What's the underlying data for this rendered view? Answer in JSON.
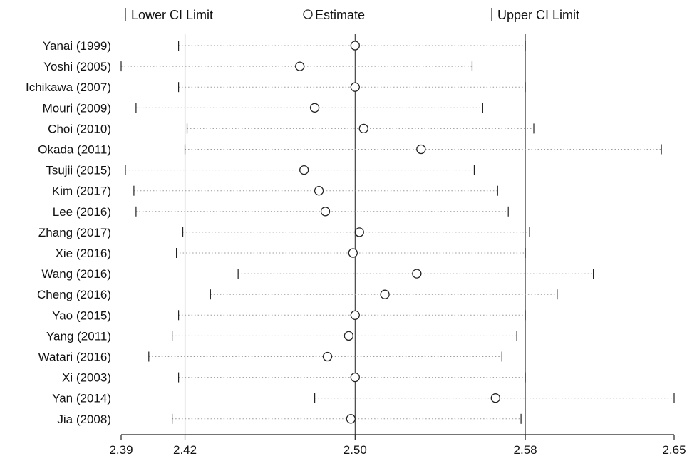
{
  "chart_data": {
    "type": "forest",
    "legend": {
      "lower": "Lower CI Limit",
      "estimate": "Estimate",
      "upper": "Upper CI Limit"
    },
    "xlim": [
      2.39,
      2.65
    ],
    "ticks": [
      {
        "value": 2.39,
        "label": "2.39"
      },
      {
        "value": 2.42,
        "label": "2.42"
      },
      {
        "value": 2.5,
        "label": "2.50"
      },
      {
        "value": 2.58,
        "label": "2.58"
      },
      {
        "value": 2.65,
        "label": "2.65"
      }
    ],
    "reference_lines": [
      2.42,
      2.5,
      2.58
    ],
    "studies": [
      {
        "label": "Yanai (1999)",
        "lower": 2.417,
        "estimate": 2.5,
        "upper": 2.58
      },
      {
        "label": "Yoshi (2005)",
        "lower": 2.39,
        "estimate": 2.474,
        "upper": 2.555
      },
      {
        "label": "Ichikawa (2007)",
        "lower": 2.417,
        "estimate": 2.5,
        "upper": 2.58
      },
      {
        "label": "Mouri (2009)",
        "lower": 2.397,
        "estimate": 2.481,
        "upper": 2.56
      },
      {
        "label": "Choi (2010)",
        "lower": 2.421,
        "estimate": 2.504,
        "upper": 2.584
      },
      {
        "label": "Okada (2011)",
        "lower": 2.42,
        "estimate": 2.531,
        "upper": 2.644
      },
      {
        "label": "Tsujii (2015)",
        "lower": 2.392,
        "estimate": 2.476,
        "upper": 2.556
      },
      {
        "label": "Kim (2017)",
        "lower": 2.396,
        "estimate": 2.483,
        "upper": 2.567
      },
      {
        "label": "Lee (2016)",
        "lower": 2.397,
        "estimate": 2.486,
        "upper": 2.572
      },
      {
        "label": "Zhang (2017)",
        "lower": 2.419,
        "estimate": 2.502,
        "upper": 2.582
      },
      {
        "label": "Xie (2016)",
        "lower": 2.416,
        "estimate": 2.499,
        "upper": 2.58
      },
      {
        "label": "Wang (2016)",
        "lower": 2.445,
        "estimate": 2.529,
        "upper": 2.612
      },
      {
        "label": "Cheng (2016)",
        "lower": 2.432,
        "estimate": 2.514,
        "upper": 2.595
      },
      {
        "label": "Yao (2015)",
        "lower": 2.417,
        "estimate": 2.5,
        "upper": 2.58
      },
      {
        "label": "Yang (2011)",
        "lower": 2.414,
        "estimate": 2.497,
        "upper": 2.576
      },
      {
        "label": "Watari (2016)",
        "lower": 2.403,
        "estimate": 2.487,
        "upper": 2.569
      },
      {
        "label": "Xi (2003)",
        "lower": 2.417,
        "estimate": 2.5,
        "upper": 2.58
      },
      {
        "label": "Yan (2014)",
        "lower": 2.481,
        "estimate": 2.566,
        "upper": 2.65
      },
      {
        "label": "Jia (2008)",
        "lower": 2.414,
        "estimate": 2.498,
        "upper": 2.578
      }
    ]
  }
}
